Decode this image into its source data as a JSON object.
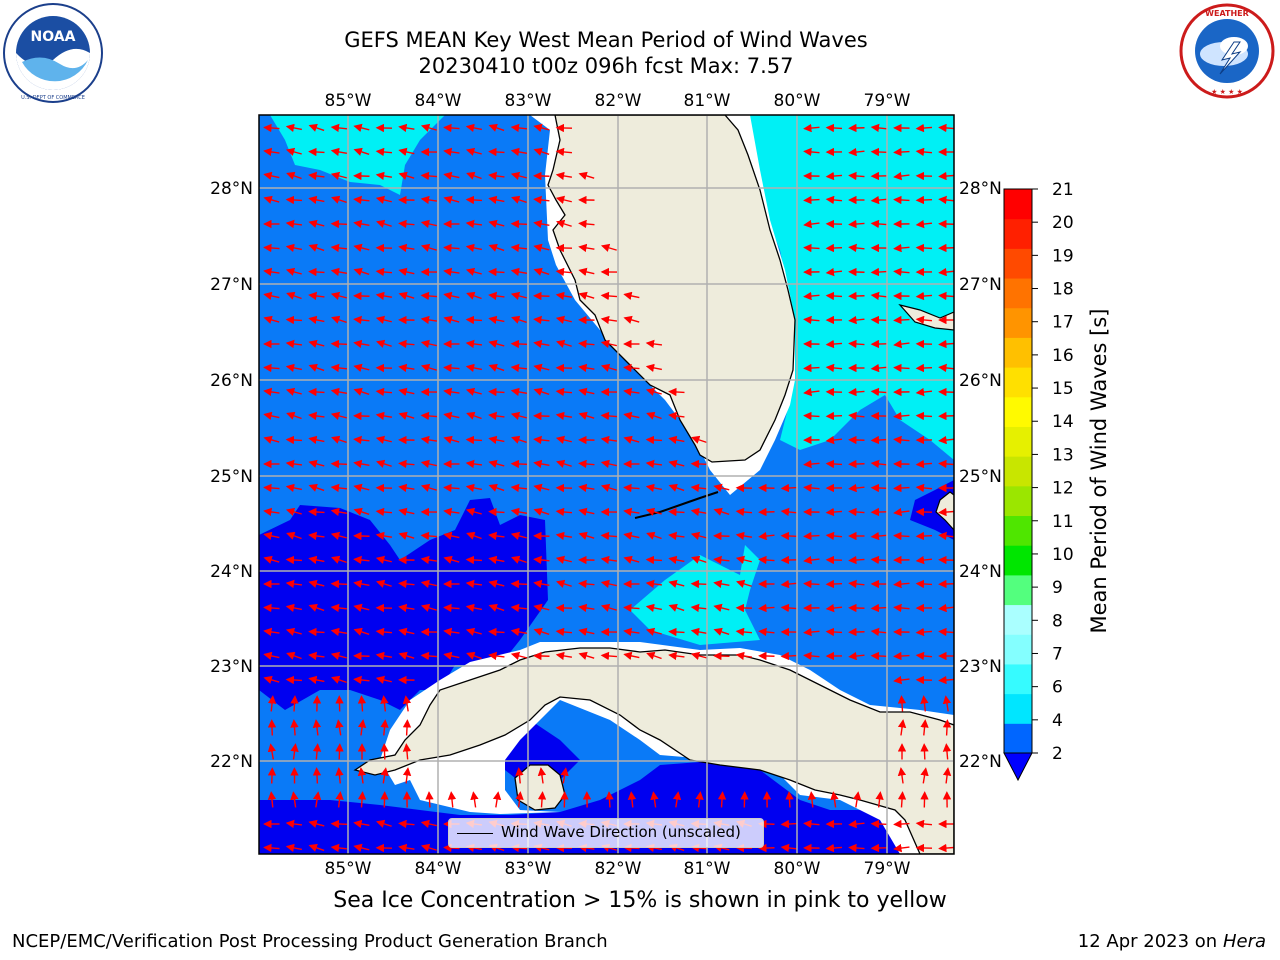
{
  "title": {
    "line1": "GEFS MEAN Key West Mean Period of Wind Waves",
    "line2": "20230410 t00z 096h fcst   Max: 7.57"
  },
  "logos": {
    "left": {
      "name": "NOAA",
      "text": "NOAA",
      "ring_text": "NATIONAL OCEANIC AND ATMOSPHERIC ADMINISTRATION  U.S. DEPARTMENT OF COMMERCE"
    },
    "right": {
      "name": "National Weather Service",
      "ring_text": "NATIONAL WEATHER SERVICE"
    }
  },
  "map": {
    "lon_labels": [
      "85°W",
      "84°W",
      "83°W",
      "82°W",
      "81°W",
      "80°W",
      "79°W"
    ],
    "lat_labels": [
      "28°N",
      "27°N",
      "26°N",
      "25°N",
      "24°N",
      "23°N",
      "22°N"
    ],
    "legend_label": "Wind Wave Direction (unscaled)",
    "arrow_color": "#ff0000",
    "land_color": "#eeecdc",
    "grid": true
  },
  "colorbar": {
    "label": "Mean Period of Wind Waves [s]",
    "ticks": [
      "21",
      "20",
      "19",
      "18",
      "17",
      "16",
      "15",
      "14",
      "13",
      "12",
      "11",
      "10",
      "9",
      "8",
      "7",
      "6",
      "4",
      "2"
    ],
    "colors_bottom_to_top": [
      "#0066ff",
      "#00e6ff",
      "#36fbff",
      "#84ffff",
      "#aaffff",
      "#53ff7e",
      "#00e600",
      "#4fe600",
      "#9be600",
      "#c8e600",
      "#e6f000",
      "#fffa00",
      "#ffe000",
      "#ffc000",
      "#ff9400",
      "#ff7300",
      "#ff4a00",
      "#ff2000",
      "#ff0000"
    ],
    "under_color": "#0000ff"
  },
  "footer": {
    "note": "Sea Ice Concentration > 15% is shown in pink to yellow",
    "credit": "NCEP/EMC/Verification Post Processing Product Generation Branch",
    "date": "12 Apr 2023 on ",
    "host": "Hera"
  }
}
